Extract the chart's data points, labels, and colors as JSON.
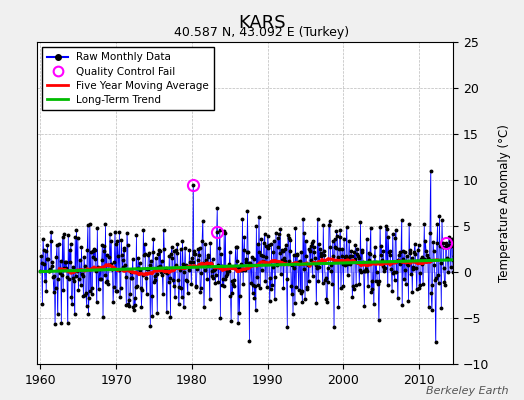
{
  "title": "KARS",
  "subtitle": "40.587 N, 43.092 E (Turkey)",
  "ylabel": "Temperature Anomaly (°C)",
  "watermark": "Berkeley Earth",
  "xlim": [
    1959.5,
    2014.5
  ],
  "ylim": [
    -10,
    25
  ],
  "yticks": [
    -10,
    -5,
    0,
    5,
    10,
    15,
    20,
    25
  ],
  "xticks": [
    1960,
    1970,
    1980,
    1990,
    2000,
    2010
  ],
  "line_color": "#0000ff",
  "stem_color": "#aaaaff",
  "moving_avg_color": "#ff0000",
  "trend_color": "#00bb00",
  "qc_color": "#ff00ff",
  "background_color": "#f0f0f0",
  "plot_bg_color": "#ffffff",
  "seed": 37
}
